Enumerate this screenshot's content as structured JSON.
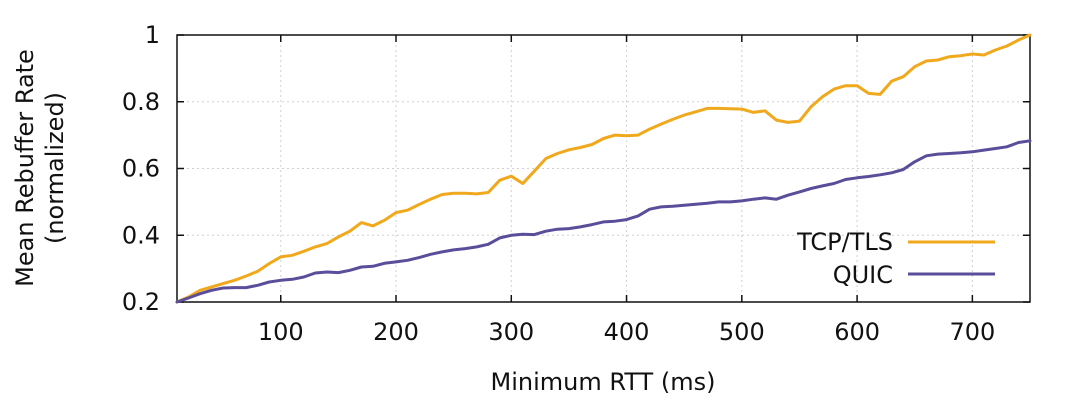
{
  "chart_data": {
    "type": "line",
    "title": "",
    "xlabel": "Minimum RTT (ms)",
    "ylabel": "Mean Rebuffer Rate",
    "ylabel_sub": "(normalized)",
    "xlim": [
      10,
      750
    ],
    "ylim": [
      0.2,
      1.0
    ],
    "xticks": [
      100,
      200,
      300,
      400,
      500,
      600,
      700
    ],
    "xtick_labels": [
      "100",
      "200",
      "300",
      "400",
      "500",
      "600",
      "700"
    ],
    "yticks": [
      0.2,
      0.4,
      0.6,
      0.8,
      1.0
    ],
    "ytick_labels": [
      "0.2",
      "0.4",
      "0.6",
      "0.8",
      "1"
    ],
    "grid": true,
    "legend_position": "bottom-right",
    "x": [
      10,
      20,
      30,
      40,
      50,
      60,
      70,
      80,
      90,
      100,
      110,
      120,
      130,
      140,
      150,
      160,
      170,
      180,
      190,
      200,
      210,
      220,
      230,
      240,
      250,
      260,
      270,
      280,
      290,
      300,
      310,
      320,
      330,
      340,
      350,
      360,
      370,
      380,
      390,
      400,
      410,
      420,
      430,
      440,
      450,
      460,
      470,
      480,
      490,
      500,
      510,
      520,
      530,
      540,
      550,
      560,
      570,
      580,
      590,
      600,
      610,
      620,
      630,
      640,
      650,
      660,
      670,
      680,
      690,
      700,
      710,
      720,
      730,
      740,
      750
    ],
    "series": [
      {
        "name": "TCP/TLS",
        "color": "#f0a81c",
        "values": [
          0.2,
          0.215,
          0.235,
          0.245,
          0.255,
          0.265,
          0.278,
          0.292,
          0.315,
          0.335,
          0.34,
          0.352,
          0.365,
          0.375,
          0.395,
          0.412,
          0.438,
          0.428,
          0.445,
          0.468,
          0.475,
          0.492,
          0.508,
          0.522,
          0.526,
          0.526,
          0.524,
          0.528,
          0.565,
          0.577,
          0.555,
          0.592,
          0.63,
          0.645,
          0.656,
          0.663,
          0.672,
          0.69,
          0.7,
          0.698,
          0.7,
          0.718,
          0.733,
          0.747,
          0.76,
          0.77,
          0.78,
          0.78,
          0.779,
          0.778,
          0.768,
          0.773,
          0.745,
          0.738,
          0.742,
          0.785,
          0.815,
          0.838,
          0.848,
          0.848,
          0.825,
          0.822,
          0.862,
          0.875,
          0.905,
          0.922,
          0.925,
          0.935,
          0.938,
          0.943,
          0.94,
          0.955,
          0.967,
          0.985,
          1.0
        ]
      },
      {
        "name": "QUIC",
        "color": "#5a4e9b",
        "values": [
          0.2,
          0.212,
          0.225,
          0.235,
          0.242,
          0.243,
          0.243,
          0.25,
          0.26,
          0.265,
          0.268,
          0.275,
          0.287,
          0.29,
          0.288,
          0.295,
          0.305,
          0.307,
          0.316,
          0.32,
          0.325,
          0.333,
          0.343,
          0.35,
          0.356,
          0.36,
          0.365,
          0.373,
          0.392,
          0.4,
          0.403,
          0.402,
          0.412,
          0.418,
          0.42,
          0.425,
          0.432,
          0.44,
          0.442,
          0.447,
          0.458,
          0.478,
          0.485,
          0.487,
          0.49,
          0.493,
          0.496,
          0.5,
          0.5,
          0.503,
          0.508,
          0.512,
          0.508,
          0.52,
          0.53,
          0.54,
          0.548,
          0.555,
          0.567,
          0.572,
          0.576,
          0.581,
          0.587,
          0.597,
          0.62,
          0.638,
          0.643,
          0.645,
          0.647,
          0.65,
          0.655,
          0.66,
          0.665,
          0.678,
          0.683
        ]
      }
    ]
  }
}
